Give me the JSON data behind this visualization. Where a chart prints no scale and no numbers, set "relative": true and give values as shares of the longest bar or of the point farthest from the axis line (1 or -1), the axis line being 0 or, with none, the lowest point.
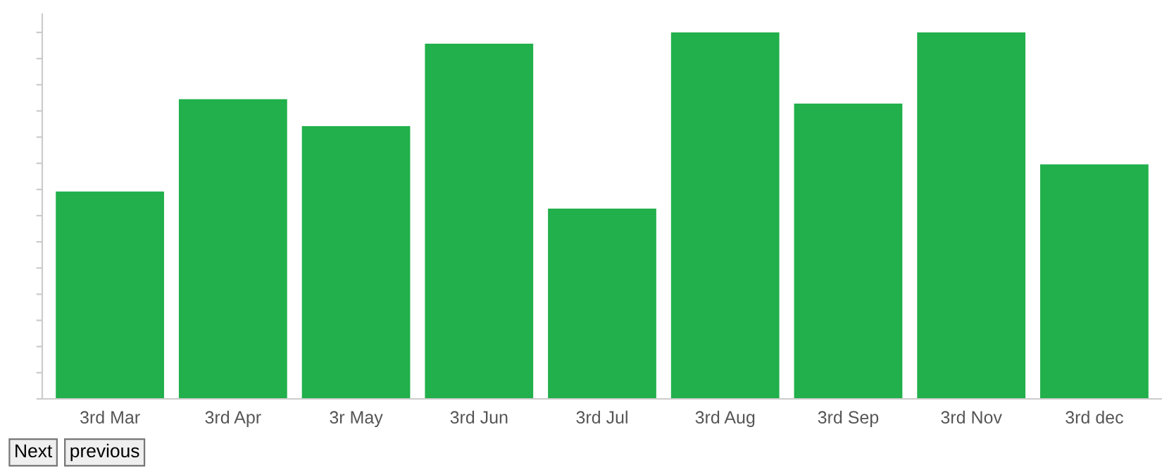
{
  "chart_data": {
    "type": "bar",
    "relative": true,
    "categories": [
      "3rd Mar",
      "3rd Apr",
      "3r May",
      "3rd Jun",
      "3rd Jul",
      "3rd Aug",
      "3rd Sep",
      "3rd Nov",
      "3rd dec"
    ],
    "values": [
      0.566,
      0.818,
      0.744,
      0.969,
      0.519,
      1,
      0.806,
      1,
      0.64
    ],
    "color": "#21b04b",
    "grid": false,
    "legend": false,
    "annotations": [
      "Next",
      "previous"
    ]
  }
}
